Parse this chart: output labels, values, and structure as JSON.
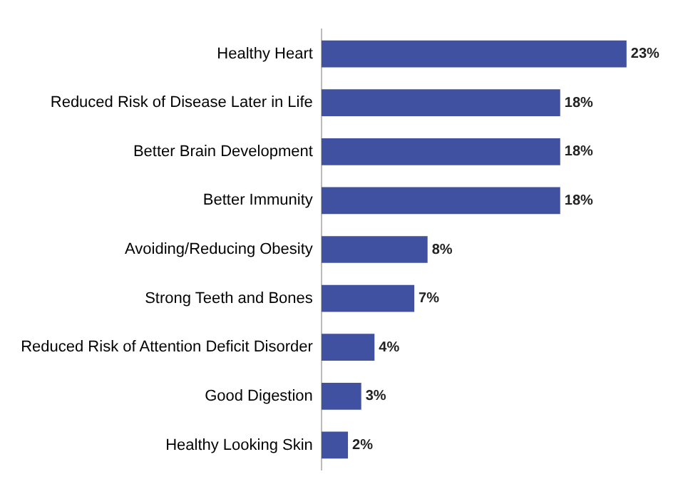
{
  "chart_data": {
    "type": "bar",
    "orientation": "horizontal",
    "categories": [
      "Healthy Heart",
      "Reduced Risk of Disease Later in Life",
      "Better Brain Development",
      "Better Immunity",
      "Avoiding/Reducing Obesity",
      "Strong Teeth and Bones",
      "Reduced Risk of Attention Deficit Disorder",
      "Good Digestion",
      "Healthy Looking Skin"
    ],
    "values": [
      23,
      18,
      18,
      18,
      8,
      7,
      4,
      3,
      2
    ],
    "value_labels": [
      "23%",
      "18%",
      "18%",
      "18%",
      "8%",
      "7%",
      "4%",
      "3%",
      "2%"
    ],
    "color": "#3f51a0"
  }
}
